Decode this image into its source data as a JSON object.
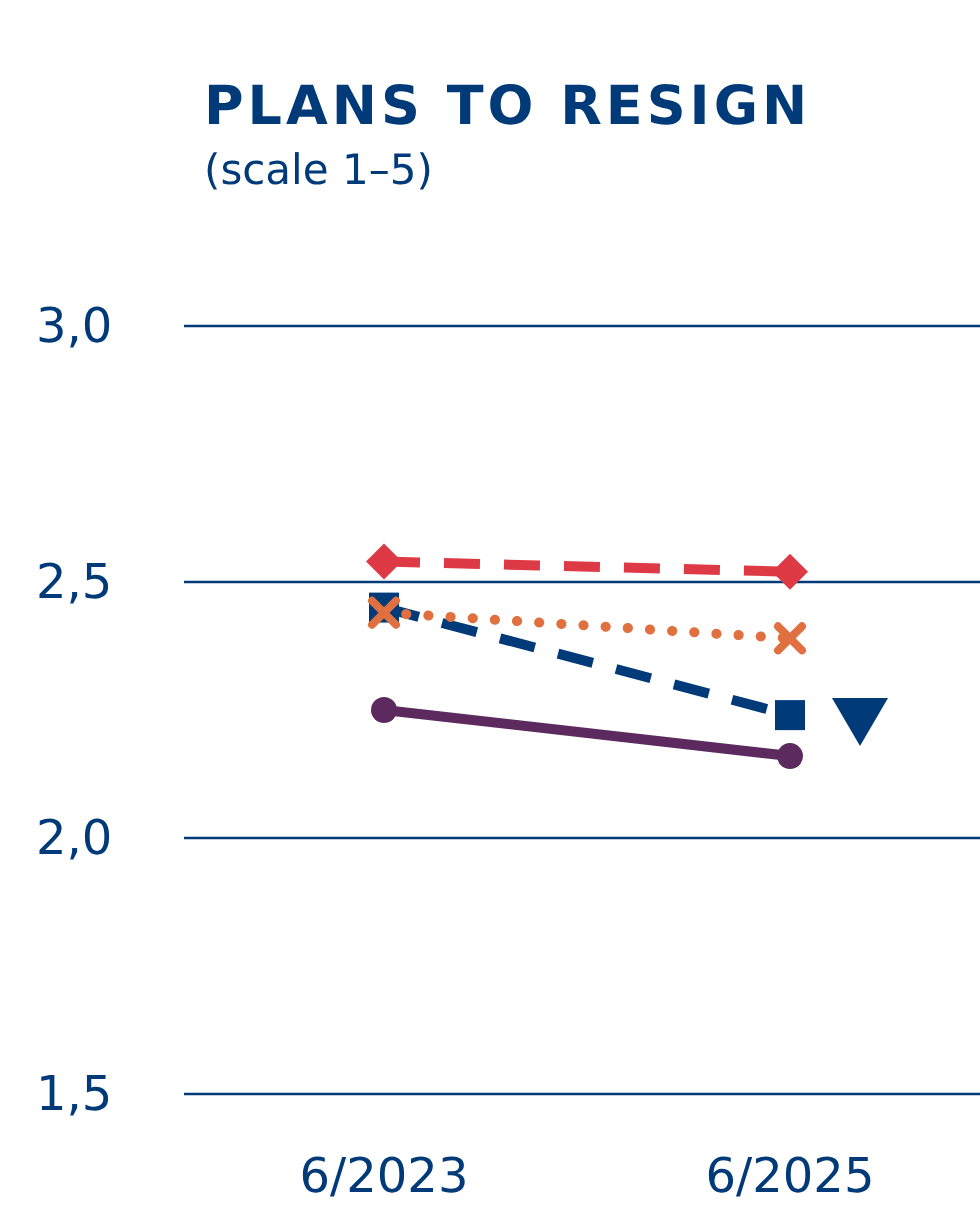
{
  "chart_data": {
    "type": "line",
    "title": "PLANS TO RESIGN",
    "subtitle": "(scale 1–5)",
    "categories": [
      "6/2023",
      "6/2025"
    ],
    "series": [
      {
        "color": "#de3a45",
        "values": [
          2.54,
          2.52
        ],
        "marker": "diamond",
        "line_style": "dashed"
      },
      {
        "color": "#003a78",
        "values": [
          2.45,
          2.24
        ],
        "marker": "square",
        "line_style": "dashed"
      },
      {
        "color": "#e07040",
        "values": [
          2.44,
          2.39
        ],
        "marker": "cross",
        "line_style": "dotted"
      },
      {
        "color": "#5c2a5e",
        "values": [
          2.25,
          2.16
        ],
        "marker": "circle",
        "line_style": "solid"
      }
    ],
    "ylim": [
      1.5,
      3.0
    ],
    "yticks": [
      {
        "value": 1.5,
        "label": "1,5"
      },
      {
        "value": 2,
        "label": "2,0"
      },
      {
        "value": 2.5,
        "label": "2,5"
      },
      {
        "value": 3,
        "label": "3,0"
      }
    ],
    "grid": "y"
  }
}
